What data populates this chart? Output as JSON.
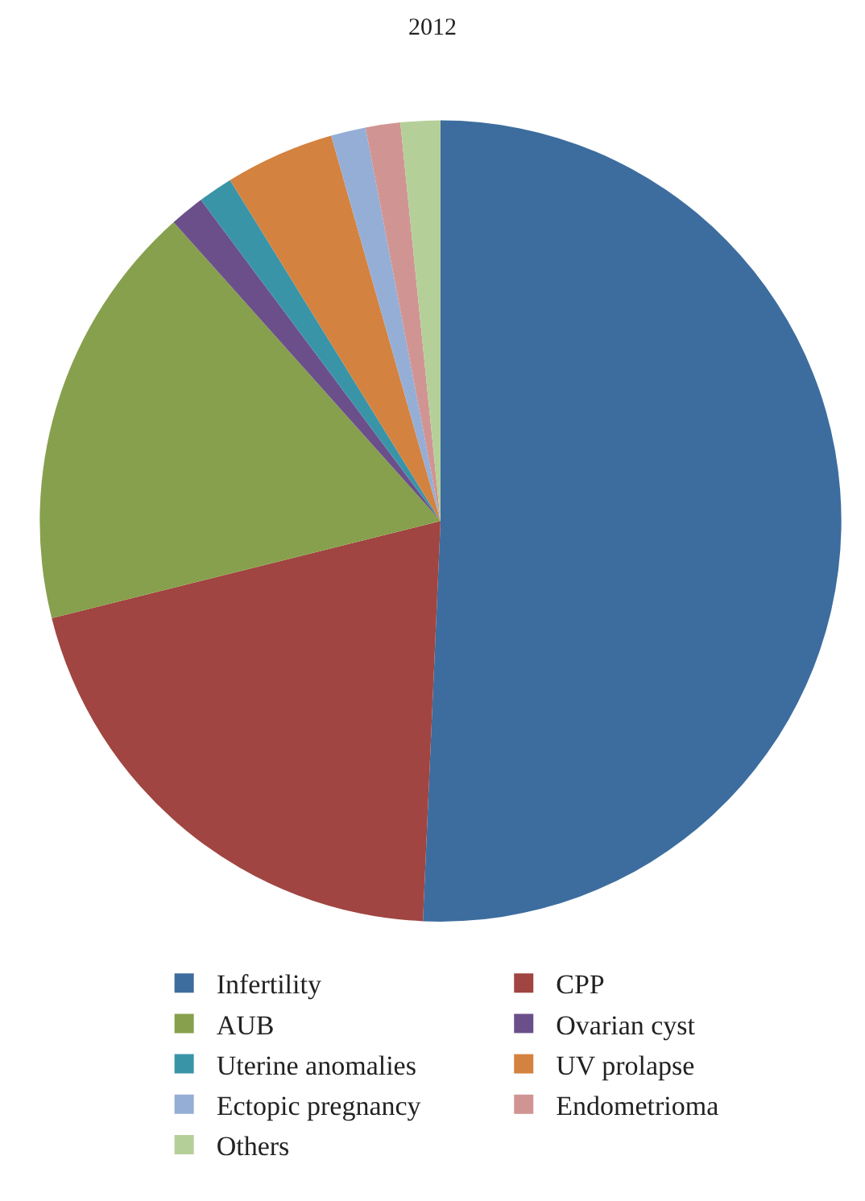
{
  "chart_data": {
    "type": "pie",
    "title": "2012",
    "categories": [
      "Infertility",
      "CPP",
      "AUB",
      "Ovarian cyst",
      "Uterine anomalies",
      "UV prolapse",
      "Ectopic pregnancy",
      "Endometrioma",
      "Others"
    ],
    "values": [
      50.7,
      20.4,
      17.3,
      1.4,
      1.4,
      4.4,
      1.4,
      1.4,
      1.6
    ],
    "colors": [
      "#3d6d9e",
      "#a04542",
      "#87a04d",
      "#6b4f8a",
      "#3a94a8",
      "#d4823f",
      "#95aed6",
      "#d09593",
      "#b5cf99"
    ],
    "legend": "bottom"
  }
}
